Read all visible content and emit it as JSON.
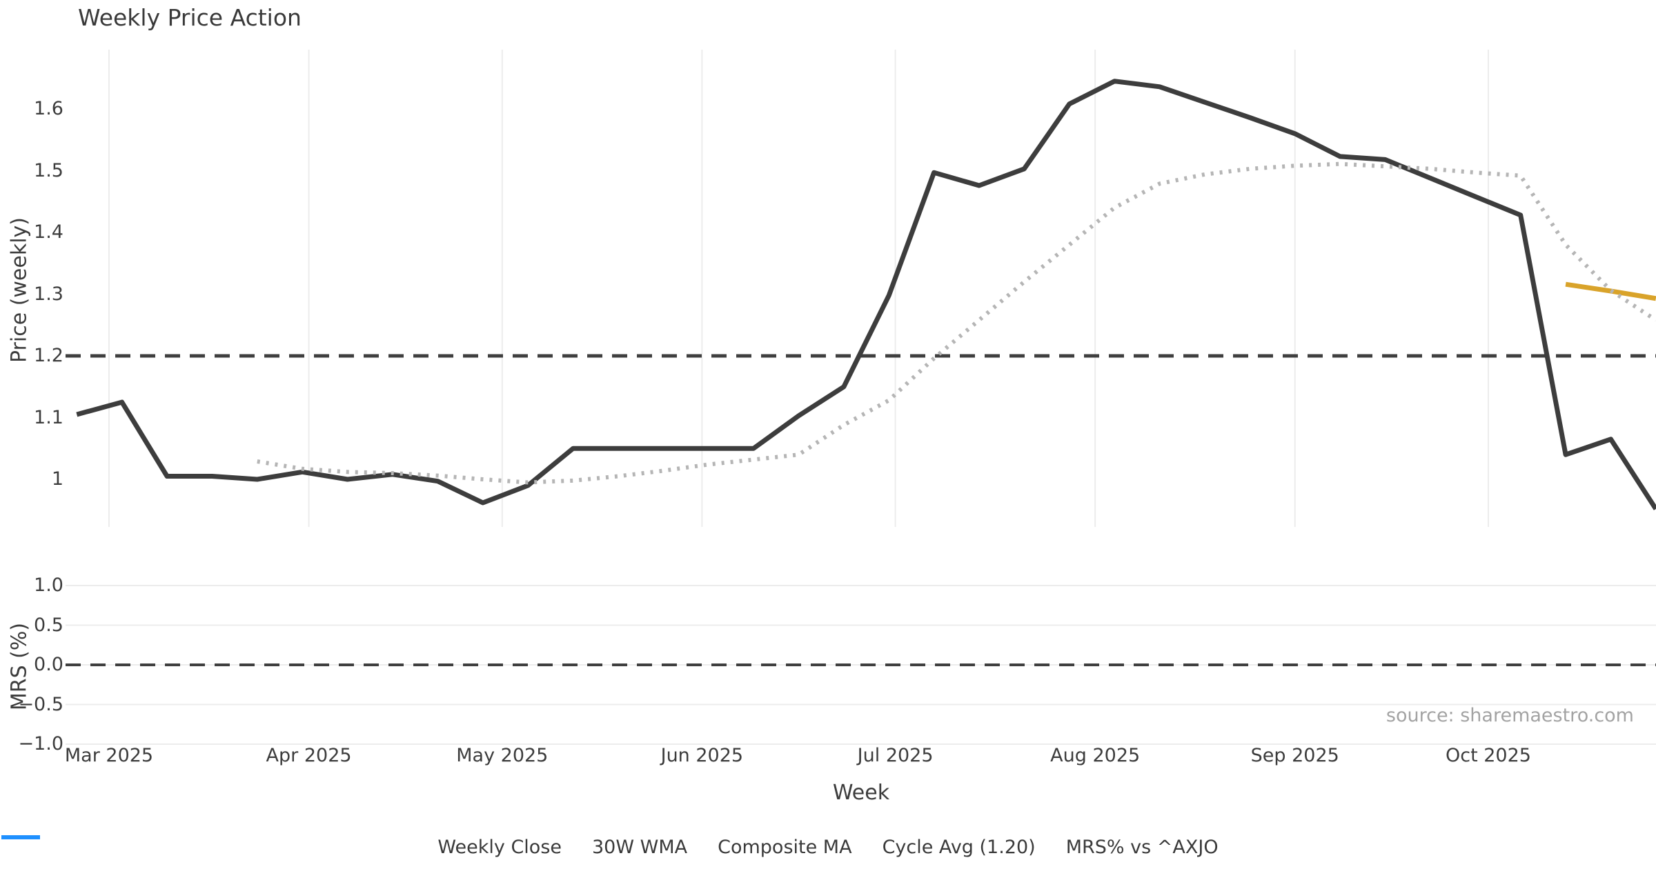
{
  "title": "Weekly Price Action",
  "source": "source: sharemaestro.com",
  "colors": {
    "close": "#3d3d3d",
    "wma": "#d9a32a",
    "composite": "#b5b5b5",
    "cycle": "#3f3f3f",
    "mrs": "#1e90ff",
    "grid": "#ececec",
    "text": "#3c3c3c",
    "muted": "#a3a3a3"
  },
  "chart_data": [
    {
      "type": "line",
      "panel": "price",
      "title": "Weekly Price Action",
      "xlabel": "Week",
      "ylabel": "Price (weekly)",
      "ylim": [
        0.92,
        1.68
      ],
      "grid": "vertical-months-only",
      "legend_position": "below-figure",
      "yticks": [
        {
          "label": "1.6",
          "value": 1.6
        },
        {
          "label": "1.5",
          "value": 1.5
        },
        {
          "label": "1.4",
          "value": 1.4
        },
        {
          "label": "1.3",
          "value": 1.3
        },
        {
          "label": "1.2",
          "value": 1.2
        },
        {
          "label": "1.1",
          "value": 1.1
        },
        {
          "label": "1",
          "value": 1.0
        }
      ],
      "xticks": [
        {
          "label": "Mar 2025",
          "date": "2025-03-01"
        },
        {
          "label": "Apr 2025",
          "date": "2025-04-01"
        },
        {
          "label": "May 2025",
          "date": "2025-05-01"
        },
        {
          "label": "Jun 2025",
          "date": "2025-06-01"
        },
        {
          "label": "Jul 2025",
          "date": "2025-07-01"
        },
        {
          "label": "Aug 2025",
          "date": "2025-08-01"
        },
        {
          "label": "Sep 2025",
          "date": "2025-09-01"
        },
        {
          "label": "Oct 2025",
          "date": "2025-10-01"
        }
      ],
      "cycle_avg": 1.2,
      "series": [
        {
          "name": "Weekly Close",
          "style": "solid",
          "color": "#3d3d3d",
          "width": 7,
          "points": [
            [
              "2025-02-24",
              1.105
            ],
            [
              "2025-03-03",
              1.125
            ],
            [
              "2025-03-10",
              1.005
            ],
            [
              "2025-03-17",
              1.005
            ],
            [
              "2025-03-24",
              1.0
            ],
            [
              "2025-03-31",
              1.012
            ],
            [
              "2025-04-07",
              1.0
            ],
            [
              "2025-04-14",
              1.008
            ],
            [
              "2025-04-21",
              0.997
            ],
            [
              "2025-04-28",
              0.962
            ],
            [
              "2025-05-05",
              0.99
            ],
            [
              "2025-05-12",
              1.05
            ],
            [
              "2025-05-19",
              1.05
            ],
            [
              "2025-05-26",
              1.05
            ],
            [
              "2025-06-02",
              1.05
            ],
            [
              "2025-06-09",
              1.05
            ],
            [
              "2025-06-16",
              1.103
            ],
            [
              "2025-06-23",
              1.15
            ],
            [
              "2025-06-30",
              1.298
            ],
            [
              "2025-07-07",
              1.497
            ],
            [
              "2025-07-14",
              1.476
            ],
            [
              "2025-07-21",
              1.503
            ],
            [
              "2025-07-28",
              1.608
            ],
            [
              "2025-08-04",
              1.645
            ],
            [
              "2025-08-11",
              1.636
            ],
            [
              "2025-08-18",
              1.611
            ],
            [
              "2025-08-25",
              1.586
            ],
            [
              "2025-09-01",
              1.56
            ],
            [
              "2025-09-08",
              1.523
            ],
            [
              "2025-09-15",
              1.518
            ],
            [
              "2025-09-22",
              1.488
            ],
            [
              "2025-09-29",
              1.458
            ],
            [
              "2025-10-06",
              1.428
            ],
            [
              "2025-10-13",
              1.04
            ],
            [
              "2025-10-20",
              1.065
            ],
            [
              "2025-10-27",
              0.952
            ]
          ]
        },
        {
          "name": "30W WMA",
          "style": "solid",
          "color": "#d9a32a",
          "width": 7,
          "points": [
            [
              "2025-10-13",
              1.316
            ],
            [
              "2025-10-20",
              1.305
            ],
            [
              "2025-10-27",
              1.293
            ]
          ]
        },
        {
          "name": "Composite MA",
          "style": "dotted",
          "color": "#b5b5b5",
          "width": 6,
          "points": [
            [
              "2025-03-24",
              1.029
            ],
            [
              "2025-03-31",
              1.017
            ],
            [
              "2025-04-07",
              1.012
            ],
            [
              "2025-04-14",
              1.01
            ],
            [
              "2025-04-21",
              1.006
            ],
            [
              "2025-04-28",
              1.0
            ],
            [
              "2025-05-05",
              0.995
            ],
            [
              "2025-05-12",
              0.998
            ],
            [
              "2025-05-19",
              1.005
            ],
            [
              "2025-05-26",
              1.014
            ],
            [
              "2025-06-02",
              1.024
            ],
            [
              "2025-06-09",
              1.032
            ],
            [
              "2025-06-16",
              1.04
            ],
            [
              "2025-06-23",
              1.088
            ],
            [
              "2025-06-30",
              1.128
            ],
            [
              "2025-07-07",
              1.196
            ],
            [
              "2025-07-14",
              1.258
            ],
            [
              "2025-07-21",
              1.32
            ],
            [
              "2025-07-28",
              1.38
            ],
            [
              "2025-08-04",
              1.44
            ],
            [
              "2025-08-11",
              1.479
            ],
            [
              "2025-08-18",
              1.494
            ],
            [
              "2025-08-25",
              1.503
            ],
            [
              "2025-09-01",
              1.508
            ],
            [
              "2025-09-08",
              1.511
            ],
            [
              "2025-09-15",
              1.507
            ],
            [
              "2025-09-22",
              1.503
            ],
            [
              "2025-09-29",
              1.497
            ],
            [
              "2025-10-06",
              1.492
            ],
            [
              "2025-10-13",
              1.38
            ],
            [
              "2025-10-20",
              1.306
            ],
            [
              "2025-10-27",
              1.258
            ]
          ]
        },
        {
          "name": "Cycle Avg (1.20)",
          "style": "dashed",
          "color": "#3f3f3f",
          "width": 5,
          "constant": 1.2,
          "points": []
        }
      ]
    },
    {
      "type": "line",
      "panel": "mrs",
      "xlabel": "Week",
      "ylabel": "MRS (%)",
      "ylim": [
        -1.0,
        1.0
      ],
      "grid": "horizontal-only",
      "yticks": [
        {
          "label": "1.0",
          "value": 1.0
        },
        {
          "label": "0.5",
          "value": 0.5
        },
        {
          "label": "0.0",
          "value": 0.0
        },
        {
          "label": "−0.5",
          "value": -0.5
        },
        {
          "label": "−1.0",
          "value": -1.0
        }
      ],
      "zero_line": 0.0,
      "series": [
        {
          "name": "MRS% vs ^AXJO",
          "style": "solid",
          "color": "#1e90ff",
          "width": 6,
          "points": []
        }
      ]
    }
  ],
  "legend": [
    {
      "label": "Weekly Close",
      "style": "solid",
      "color": "#3d3d3d"
    },
    {
      "label": "30W WMA",
      "style": "solid",
      "color": "#d9a32a"
    },
    {
      "label": "Composite MA",
      "style": "dotted",
      "color": "#b5b5b5"
    },
    {
      "label": "Cycle Avg (1.20)",
      "style": "dashed",
      "color": "#3f3f3f"
    },
    {
      "label": "MRS% vs ^AXJO",
      "style": "solid",
      "color": "#1e90ff"
    }
  ]
}
